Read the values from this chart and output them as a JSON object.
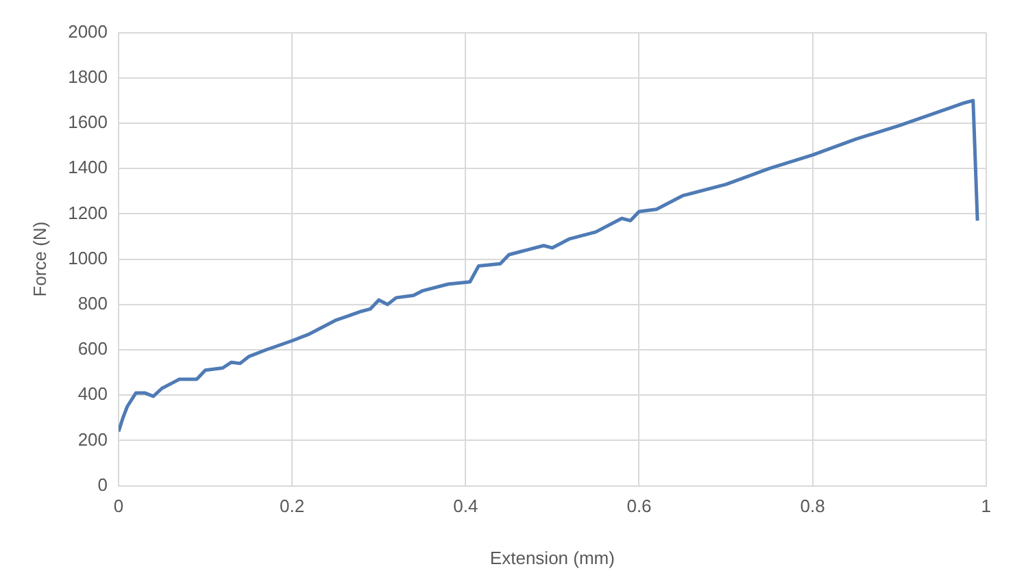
{
  "chart_data": {
    "type": "line",
    "xlabel": "Extension (mm)",
    "ylabel": "Force (N)",
    "x": [
      0,
      0.005,
      0.01,
      0.02,
      0.03,
      0.04,
      0.05,
      0.07,
      0.09,
      0.1,
      0.12,
      0.13,
      0.14,
      0.15,
      0.17,
      0.2,
      0.22,
      0.25,
      0.28,
      0.29,
      0.3,
      0.31,
      0.32,
      0.34,
      0.35,
      0.38,
      0.405,
      0.415,
      0.44,
      0.45,
      0.47,
      0.49,
      0.5,
      0.52,
      0.55,
      0.58,
      0.59,
      0.6,
      0.62,
      0.65,
      0.7,
      0.75,
      0.8,
      0.85,
      0.9,
      0.93,
      0.96,
      0.975,
      0.985,
      0.99
    ],
    "series": [
      {
        "color": "#4f7bb5",
        "values": [
          240,
          300,
          350,
          410,
          410,
          395,
          430,
          470,
          470,
          510,
          520,
          545,
          540,
          570,
          600,
          640,
          670,
          730,
          770,
          780,
          820,
          800,
          830,
          840,
          860,
          890,
          900,
          970,
          980,
          1020,
          1040,
          1060,
          1050,
          1090,
          1120,
          1180,
          1170,
          1210,
          1220,
          1280,
          1330,
          1400,
          1460,
          1530,
          1590,
          1630,
          1670,
          1690,
          1700,
          1170
        ]
      }
    ],
    "xlim": [
      0,
      1
    ],
    "xticks": [
      0,
      0.2,
      0.4,
      0.6,
      0.8,
      1
    ],
    "ylim": [
      0,
      2000
    ],
    "yticks": [
      0,
      200,
      400,
      600,
      800,
      1000,
      1200,
      1400,
      1600,
      1800,
      2000
    ],
    "grid": true,
    "legend": false,
    "marker": "none",
    "line_style": "solid"
  }
}
